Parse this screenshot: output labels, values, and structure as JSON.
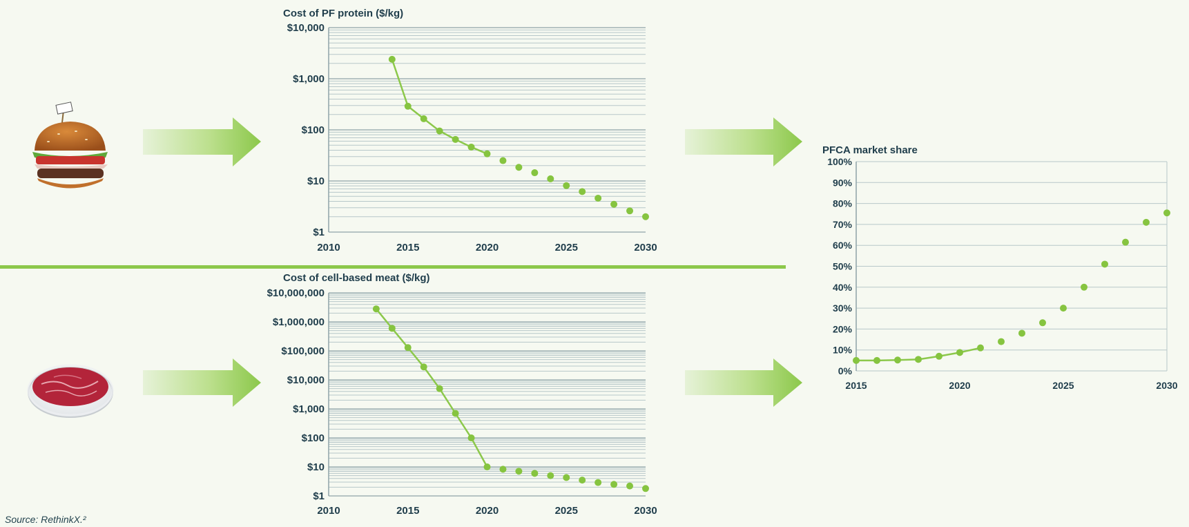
{
  "source_note": "Source: RethinkX.²",
  "colors": {
    "line": "#8cc84b",
    "point": "#86c440",
    "grid": "#b7c7c9",
    "axis_text": "#1f3d4b",
    "divider": "#8cc84b",
    "arrow": "#8cc84b"
  },
  "icons": {
    "top": "burger-icon",
    "bottom": "petri-dish-meat-icon"
  },
  "chart_data": [
    {
      "id": "pf_protein",
      "type": "line",
      "title": "Cost of PF protein ($/kg)",
      "scale": "log",
      "xlim": [
        2010,
        2030
      ],
      "ylim": [
        1,
        10000
      ],
      "x_ticks": [
        2010,
        2015,
        2020,
        2025,
        2030
      ],
      "x_tick_labels": [
        "2010",
        "2015",
        "2020",
        "2025",
        "2030"
      ],
      "y_ticks": [
        1,
        10,
        100,
        1000,
        10000
      ],
      "y_tick_labels": [
        "$1",
        "$10",
        "$100",
        "$1,000",
        "$10,000"
      ],
      "grid": true,
      "series": [
        {
          "style": "line-with-markers",
          "x": [
            2014,
            2015,
            2016,
            2017,
            2018,
            2019,
            2020
          ],
          "y": [
            2400,
            290,
            165,
            95,
            65,
            46,
            34
          ]
        },
        {
          "style": "markers",
          "x": [
            2021,
            2022,
            2023,
            2024,
            2025,
            2026,
            2027,
            2028,
            2029,
            2030
          ],
          "y": [
            25,
            18.5,
            14.5,
            11,
            8.1,
            6.2,
            4.6,
            3.5,
            2.6,
            2.0
          ]
        }
      ]
    },
    {
      "id": "cell_based_meat",
      "type": "line",
      "title": "Cost of cell-based meat ($/kg)",
      "scale": "log",
      "xlim": [
        2010,
        2030
      ],
      "ylim": [
        1,
        10000000
      ],
      "x_ticks": [
        2010,
        2015,
        2020,
        2025,
        2030
      ],
      "x_tick_labels": [
        "2010",
        "2015",
        "2020",
        "2025",
        "2030"
      ],
      "y_ticks": [
        1,
        10,
        100,
        1000,
        10000,
        100000,
        1000000,
        10000000
      ],
      "y_tick_labels": [
        "$1",
        "$10",
        "$100",
        "$1,000",
        "$10,000",
        "$100,000",
        "$1,000,000",
        "$10,000,000"
      ],
      "grid": true,
      "series": [
        {
          "style": "line-with-markers",
          "x": [
            2013,
            2014,
            2015,
            2016,
            2017,
            2018,
            2019,
            2020
          ],
          "y": [
            2800000,
            600000,
            130000,
            28000,
            5000,
            700,
            100,
            10
          ]
        },
        {
          "style": "markers",
          "x": [
            2021,
            2022,
            2023,
            2024,
            2025,
            2026,
            2027,
            2028,
            2029,
            2030
          ],
          "y": [
            8.3,
            7.1,
            6.0,
            5.0,
            4.3,
            3.5,
            2.9,
            2.5,
            2.2,
            1.8
          ]
        }
      ]
    },
    {
      "id": "pfca_market_share",
      "type": "line",
      "title": "PFCA market share",
      "scale": "linear",
      "xlim": [
        2015,
        2030
      ],
      "ylim": [
        0,
        100
      ],
      "x_ticks": [
        2015,
        2020,
        2025,
        2030
      ],
      "x_tick_labels": [
        "2015",
        "2020",
        "2025",
        "2030"
      ],
      "y_ticks": [
        0,
        10,
        20,
        30,
        40,
        50,
        60,
        70,
        80,
        90,
        100
      ],
      "y_tick_labels": [
        "0%",
        "10%",
        "20%",
        "30%",
        "40%",
        "50%",
        "60%",
        "70%",
        "80%",
        "90%",
        "100%"
      ],
      "grid": true,
      "series": [
        {
          "style": "line-with-markers",
          "x": [
            2015,
            2016,
            2017,
            2018,
            2019,
            2020,
            2021
          ],
          "y": [
            5,
            5,
            5.2,
            5.5,
            7,
            8.8,
            11
          ]
        },
        {
          "style": "markers",
          "x": [
            2022,
            2023,
            2024,
            2025,
            2026,
            2027,
            2028,
            2029,
            2030
          ],
          "y": [
            14,
            18,
            23,
            30,
            40,
            51,
            61.5,
            71,
            75.5
          ]
        }
      ]
    }
  ]
}
